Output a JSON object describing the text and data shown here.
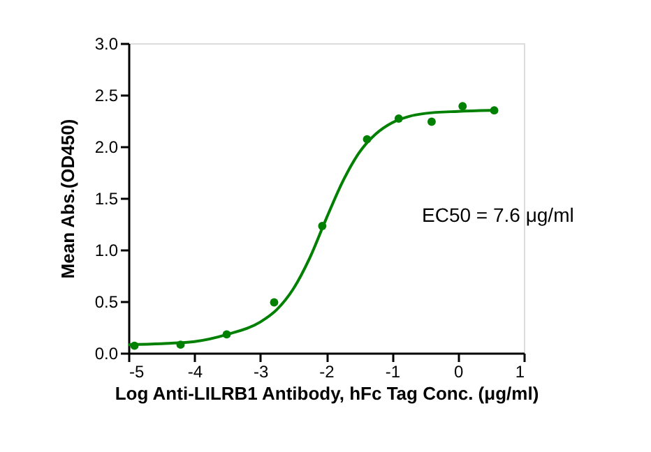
{
  "chart_data": {
    "type": "scatter",
    "xlabel": "Log Anti-LILRB1 Antibody, hFc Tag Conc. (μg/ml)",
    "ylabel": "Mean Abs.(OD450)",
    "xlim": [
      -5,
      1
    ],
    "xticks": [
      -5,
      -4,
      -3,
      -2,
      -1,
      0,
      1
    ],
    "ylim": [
      0,
      3
    ],
    "yticks": [
      {
        "value": 0,
        "label": "0.0"
      },
      0.5,
      {
        "value": 1,
        "label": "1.0"
      },
      1.5,
      {
        "value": 2,
        "label": "2.0"
      },
      2.5,
      {
        "value": 3,
        "label": "3.0"
      }
    ],
    "grid": false,
    "marker": "circle",
    "annotations": [
      {
        "text": "EC50 = 7.6 μg/ml"
      }
    ],
    "series": [
      {
        "color": "#008000",
        "x": [
          -4.91,
          -4.21,
          -3.51,
          -2.79,
          -2.06,
          -1.38,
          -0.9,
          -0.4,
          0.07,
          0.55
        ],
        "values": [
          0.07,
          0.08,
          0.18,
          0.49,
          1.23,
          2.07,
          2.27,
          2.24,
          2.39,
          2.35
        ]
      },
      {
        "type": "line",
        "color": "#008000",
        "line_style": "solid",
        "marker": "none",
        "x": [
          -5,
          -4.5,
          -4,
          -3.5,
          -3,
          -2.75,
          -2.5,
          -2.25,
          -2,
          -1.75,
          -1.5,
          -1.25,
          -1,
          -0.75,
          -0.5,
          0,
          0.5
        ],
        "values": [
          0.08,
          0.09,
          0.11,
          0.18,
          0.3,
          0.42,
          0.62,
          0.92,
          1.3,
          1.66,
          1.94,
          2.12,
          2.23,
          2.29,
          2.32,
          2.34,
          2.35
        ]
      }
    ]
  }
}
